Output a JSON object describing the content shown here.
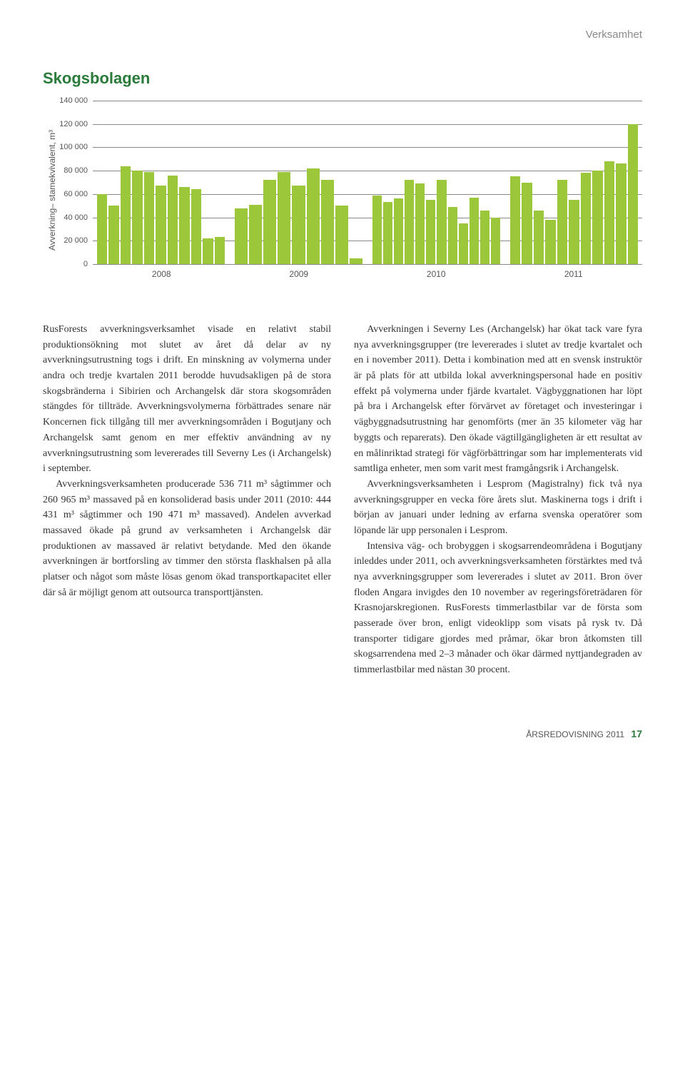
{
  "header": {
    "category": "Verksamhet"
  },
  "chart": {
    "title": "Skogsbolagen",
    "y_axis_label": "Avverkning– stamekvivalent, m³",
    "type": "bar",
    "bar_color": "#9dc73a",
    "grid_color": "#888888",
    "background": "#ffffff",
    "y_min": 0,
    "y_max": 140000,
    "y_ticks": [
      0,
      20000,
      40000,
      60000,
      80000,
      100000,
      120000,
      140000
    ],
    "y_tick_labels": [
      "0",
      "20 000",
      "40 000",
      "60 000",
      "80 000",
      "100 000",
      "120 000",
      "140 000"
    ],
    "groups": [
      {
        "year": "2008",
        "values": [
          60000,
          50000,
          84000,
          80000,
          79000,
          67000,
          76000,
          66000,
          64000,
          22000,
          23000
        ]
      },
      {
        "year": "2009",
        "values": [
          48000,
          51000,
          72000,
          79000,
          67000,
          82000,
          72000,
          50000,
          5000
        ]
      },
      {
        "year": "2010",
        "values": [
          59000,
          53000,
          56000,
          72000,
          69000,
          55000,
          72000,
          49000,
          35000,
          57000,
          46000,
          40000
        ]
      },
      {
        "year": "2011",
        "values": [
          75000,
          70000,
          46000,
          38000,
          72000,
          55000,
          78000,
          80000,
          88000,
          86000,
          120000
        ]
      }
    ]
  },
  "body": {
    "p1": "RusForests avverkningsverksamhet visade en relativt stabil produktionsökning mot slutet av året då delar av ny avverkningsutrustning togs i drift. En minskning av volymerna under andra och tredje kvartalen 2011 berodde huvudsakligen på de stora skogsbränderna i Sibirien och Archangelsk där stora skogsområden stängdes för tillträde. Avverkningsvolymerna förbättrades senare när Koncernen fick tillgång till mer avverkningsområden i Bogutjany och Archangelsk samt genom en mer effektiv användning av ny avverkningsutrustning som levererades till Severny Les (i Archangelsk) i september.",
    "p2": "Avverkningsverksamheten producerade 536 711 m³ sågtimmer och 260 965 m³ massaved på en konsoliderad basis under 2011 (2010: 444 431 m³ sågtimmer och 190 471 m³ massaved). Andelen avverkad massaved ökade på grund av verksamheten i Archangelsk där produktionen av massaved är relativt betydande. Med den ökande avverkningen är bortforsling av timmer den största flaskhalsen på alla platser och något som måste lösas genom ökad transportkapacitet eller där så är möjligt genom att outsourca transporttjänsten.",
    "p3": "Avverkningen i Severny Les (Archangelsk) har ökat tack vare fyra nya avverkningsgrupper (tre levererades i slutet av tredje kvartalet och en i november 2011). Detta i kombination med att en svensk instruktör är på plats för att utbilda lokal avverkningspersonal hade en positiv effekt på volymerna under fjärde kvartalet. Vägbyggnationen har löpt på bra i Archangelsk efter förvärvet av företaget och investeringar i vägbyggnadsutrustning har genomförts (mer än 35 kilometer väg har byggts och reparerats). Den ökade vägtillgängligheten är ett resultat av en målinriktad strategi för vägförbättringar som har implementerats vid samtliga enheter, men som varit mest framgångsrik i Archangelsk.",
    "p4": "Avverkningsverksamheten i Lesprom (Magistralny) fick två nya avverkningsgrupper en vecka före årets slut. Maskinerna togs i drift i början av januari under ledning av erfarna svenska operatörer som löpande lär upp personalen i Lesprom.",
    "p5": "Intensiva väg- och brobyggen i skogsarrendeområdena i Bogutjany inleddes under 2011, och avverkningsverksamheten förstärktes med två nya avverkningsgrupper som levererades i slutet av 2011. Bron över floden Angara invigdes den 10 november av regeringsföreträdaren för Krasnojarskregionen. RusForests timmerlastbilar var de första som passerade över bron, enligt videoklipp som visats på rysk tv. Då transporter tidigare gjordes med pråmar, ökar bron åtkomsten till skogsarrendena med 2–3 månader och ökar därmed nyttjandegraden av timmerlastbilar med nästan 30 procent."
  },
  "footer": {
    "label": "ÅRSREDOVISNING 2011",
    "page": "17"
  }
}
